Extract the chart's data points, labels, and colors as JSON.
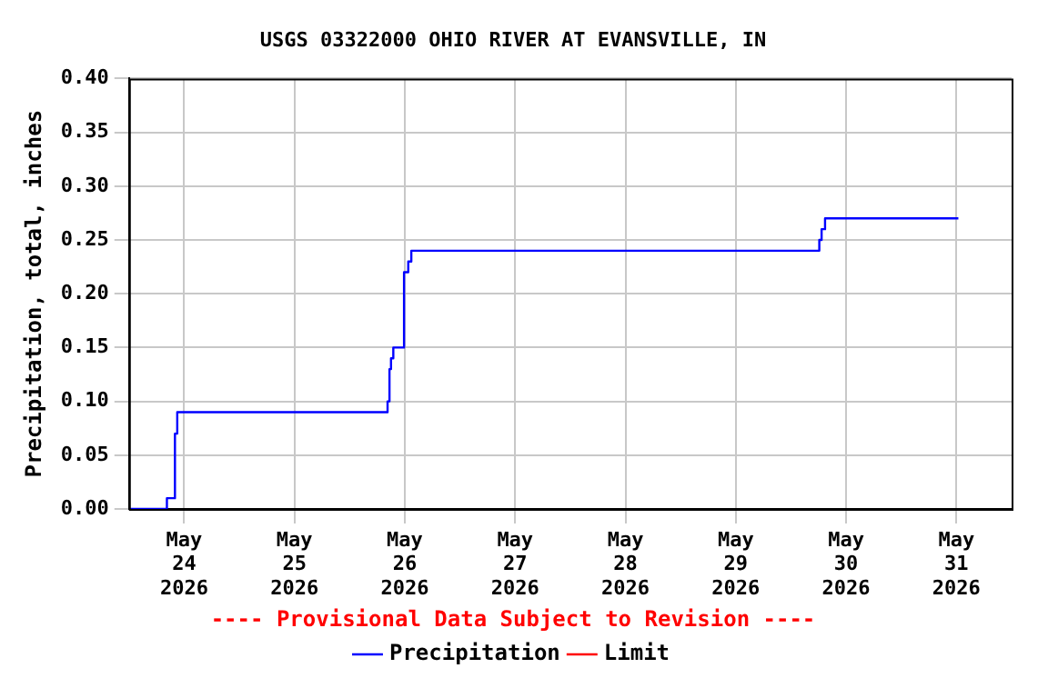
{
  "chart_data": {
    "type": "step",
    "title": "USGS 03322000 OHIO RIVER AT EVANSVILLE, IN",
    "ylabel": "Precipitation, total, inches",
    "annotations": [
      "---- Provisional Data Subject to Revision ----"
    ],
    "series": [
      {
        "name": "Precipitation",
        "color": "#0000ff",
        "x": [
          "2026-05-23T12:00",
          "2026-05-23T20:15",
          "2026-05-23T22:00",
          "2026-05-23T22:30",
          "2026-05-25T20:15",
          "2026-05-25T20:40",
          "2026-05-25T21:00",
          "2026-05-25T21:30",
          "2026-05-25T23:50",
          "2026-05-26T00:45",
          "2026-05-26T01:25",
          "2026-05-29T18:10",
          "2026-05-29T18:40",
          "2026-05-29T19:25",
          "2026-05-31T00:25"
        ],
        "values": [
          0.0,
          0.01,
          0.07,
          0.09,
          0.1,
          0.13,
          0.14,
          0.15,
          0.22,
          0.23,
          0.24,
          0.25,
          0.26,
          0.27,
          0.27
        ]
      },
      {
        "name": "Limit",
        "color": "#ff0000"
      }
    ],
    "xlim": [
      "2026-05-23T12:00",
      "2026-05-31T12:00"
    ],
    "xticks": [
      {
        "value": "2026-05-24",
        "label": "May 24 2026"
      },
      {
        "value": "2026-05-25",
        "label": "May 25 2026"
      },
      {
        "value": "2026-05-26",
        "label": "May 26 2026"
      },
      {
        "value": "2026-05-27",
        "label": "May 27 2026"
      },
      {
        "value": "2026-05-28",
        "label": "May 28 2026"
      },
      {
        "value": "2026-05-29",
        "label": "May 29 2026"
      },
      {
        "value": "2026-05-30",
        "label": "May 30 2026"
      },
      {
        "value": "2026-05-31",
        "label": "May 31 2026"
      }
    ],
    "ylim": [
      0,
      0.4
    ],
    "yticks": [
      {
        "value": 0,
        "label": "0.00"
      },
      {
        "value": 0.05,
        "label": "0.05"
      },
      {
        "value": 0.1,
        "label": "0.10"
      },
      {
        "value": 0.15,
        "label": "0.15"
      },
      {
        "value": 0.2,
        "label": "0.20"
      },
      {
        "value": 0.25,
        "label": "0.25"
      },
      {
        "value": 0.3,
        "label": "0.30"
      },
      {
        "value": 0.35,
        "label": "0.35"
      },
      {
        "value": 0.4,
        "label": "0.40"
      }
    ],
    "grid": true,
    "legend": "bottom"
  }
}
